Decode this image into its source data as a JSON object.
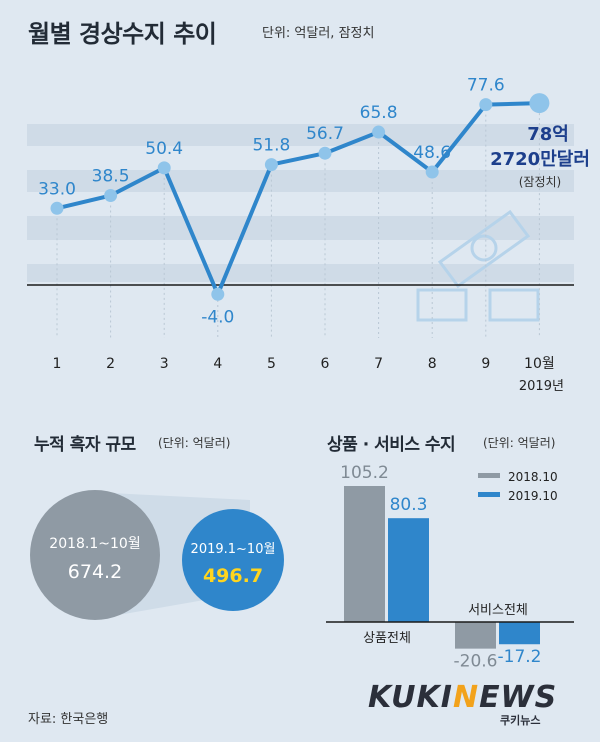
{
  "header": {
    "title": "월별 경상수지 추이",
    "unit": "단위: 억달러, 잠정치"
  },
  "line_chart": {
    "annotation_value": "78억",
    "annotation_value2": "2720만달러",
    "annotation_note": "(잠정치)",
    "year_label": "2019년"
  },
  "cumulative": {
    "title": "누적 흑자 규모",
    "unit": "(단위: 억달러)",
    "left_label": "2018.1~10월",
    "left_value": "674.2",
    "right_label": "2019.1~10월",
    "right_value": "496.7"
  },
  "goods_services": {
    "title": "상품 · 서비스 수지",
    "unit": "(단위: 억달러)",
    "legend_2018": "2018.10",
    "legend_2019": "2019.10",
    "label_goods": "상품전체",
    "label_services": "서비스전체"
  },
  "source": "자료: 한국은행",
  "logo": {
    "text_a": "KUKI",
    "text_b": "N",
    "text_c": "EWS",
    "sub": "쿠키뉴스"
  },
  "colors": {
    "blue": "#2f86cb",
    "gray": "#8f9aa4",
    "light_blue": "#8fc4ea",
    "dark": "#222b36"
  },
  "chart_data": [
    {
      "type": "line",
      "title": "월별 경상수지 추이",
      "x": [
        "1",
        "2",
        "3",
        "4",
        "5",
        "6",
        "7",
        "8",
        "9",
        "10월"
      ],
      "series": [
        {
          "values": [
            33.0,
            38.5,
            50.4,
            -4.0,
            51.8,
            56.7,
            65.8,
            48.6,
            77.6,
            78.272
          ]
        }
      ],
      "value_labels": [
        "33.0",
        "38.5",
        "50.4",
        "-4.0",
        "51.8",
        "56.7",
        "65.8",
        "48.6",
        "77.6",
        ""
      ],
      "ylim": [
        -10,
        90
      ],
      "zero_line": true
    },
    {
      "type": "bar",
      "title": "상품 · 서비스 수지",
      "categories": [
        "상품전체",
        "서비스전체"
      ],
      "series": [
        {
          "name": "2018.10",
          "values": [
            105.2,
            -20.6
          ]
        },
        {
          "name": "2019.10",
          "values": [
            80.3,
            -17.2
          ]
        }
      ]
    }
  ]
}
